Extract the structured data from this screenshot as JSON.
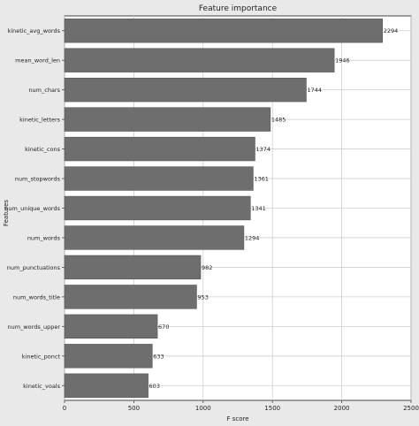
{
  "chart_data": {
    "type": "bar",
    "orientation": "horizontal",
    "title": "Feature importance",
    "xlabel": "F score",
    "ylabel": "Features",
    "xlim": [
      0,
      2500
    ],
    "xticks": [
      "0",
      "500",
      "1000",
      "1500",
      "2000",
      "2500"
    ],
    "xtick_values": [
      0,
      500,
      1000,
      1500,
      2000,
      2500
    ],
    "grid": true,
    "categories": [
      "kinetic_avg_words",
      "mean_word_len",
      "num_chars",
      "kinetic_letters",
      "kinetic_cons",
      "num_stopwords",
      "num_unique_words",
      "num_words",
      "num_punctuations",
      "num_words_title",
      "num_words_upper",
      "kinetic_ponct",
      "kinetic_voals"
    ],
    "values": [
      2294,
      1946,
      1744,
      1485,
      1374,
      1361,
      1341,
      1294,
      982,
      953,
      670,
      633,
      603
    ],
    "value_labels": [
      "2294",
      "1946",
      "1744",
      "1485",
      "1374",
      "1361",
      "1341",
      "1294",
      "982",
      "953",
      "670",
      "633",
      "603"
    ],
    "colors": {
      "bar": "#6e6e6e",
      "bar_edge": "#555555",
      "plot_bg": "#ffffff",
      "figure_bg": "#e9e9e9",
      "grid": "#cfcfcf",
      "text": "#222222"
    }
  }
}
